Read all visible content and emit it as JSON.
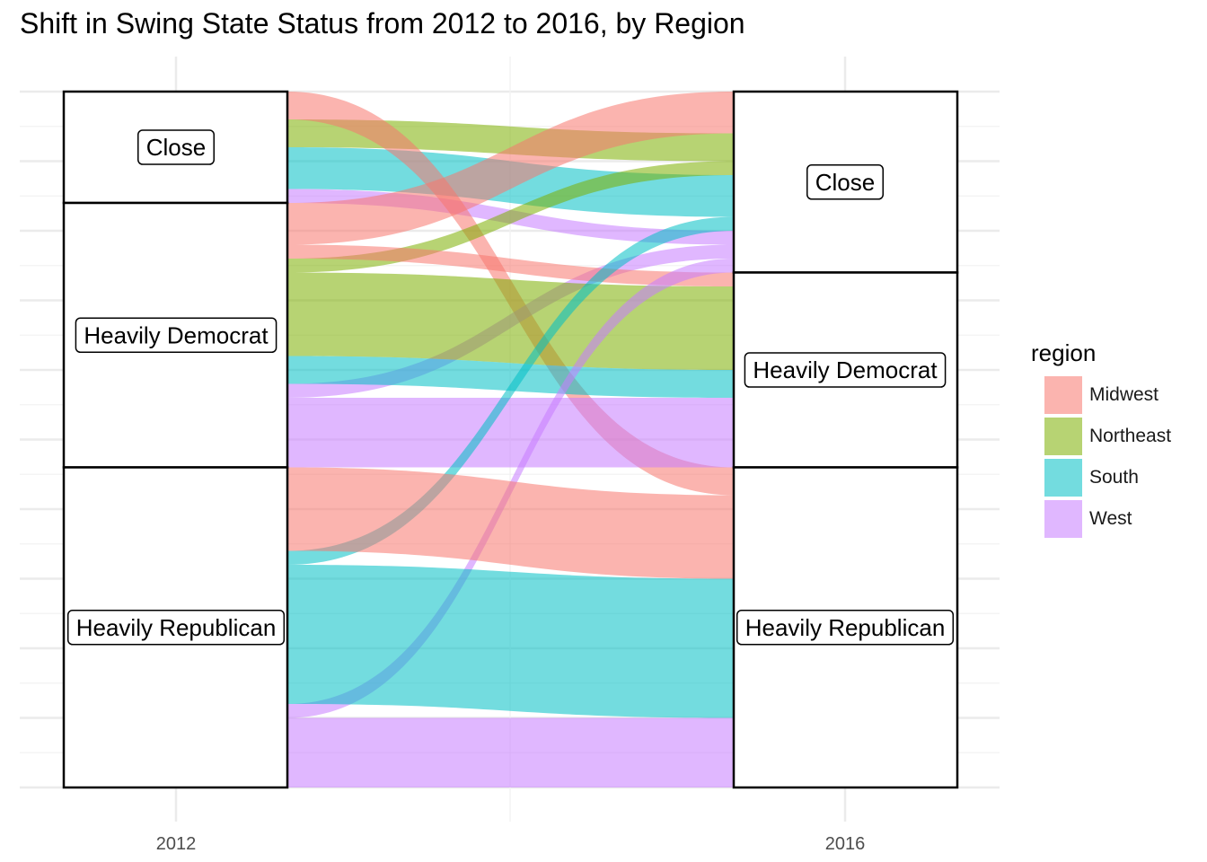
{
  "chart_data": {
    "type": "alluvial",
    "title": "Shift in Swing State Status from 2012 to 2016, by Region",
    "x_axis": [
      "2012",
      "2016"
    ],
    "y_total": 50,
    "strata": {
      "2012": [
        "Close",
        "Heavily Democrat",
        "Heavily Republican"
      ],
      "2016": [
        "Close",
        "Heavily Democrat",
        "Heavily Republican"
      ]
    },
    "flows": [
      {
        "from": "Close",
        "to": "Close",
        "region": "Northeast",
        "count": 2
      },
      {
        "from": "Close",
        "to": "Close",
        "region": "South",
        "count": 3
      },
      {
        "from": "Close",
        "to": "Close",
        "region": "West",
        "count": 1
      },
      {
        "from": "Close",
        "to": "Heavily Republican",
        "region": "Midwest",
        "count": 2
      },
      {
        "from": "Heavily Democrat",
        "to": "Close",
        "region": "Midwest",
        "count": 3
      },
      {
        "from": "Heavily Democrat",
        "to": "Close",
        "region": "Northeast",
        "count": 1
      },
      {
        "from": "Heavily Democrat",
        "to": "Close",
        "region": "West",
        "count": 1
      },
      {
        "from": "Heavily Democrat",
        "to": "Heavily Democrat",
        "region": "Midwest",
        "count": 1
      },
      {
        "from": "Heavily Democrat",
        "to": "Heavily Democrat",
        "region": "Northeast",
        "count": 6
      },
      {
        "from": "Heavily Democrat",
        "to": "Heavily Democrat",
        "region": "South",
        "count": 2
      },
      {
        "from": "Heavily Democrat",
        "to": "Heavily Democrat",
        "region": "West",
        "count": 5
      },
      {
        "from": "Heavily Republican",
        "to": "Close",
        "region": "South",
        "count": 1
      },
      {
        "from": "Heavily Republican",
        "to": "Close",
        "region": "West",
        "count": 1
      },
      {
        "from": "Heavily Republican",
        "to": "Heavily Republican",
        "region": "Midwest",
        "count": 6
      },
      {
        "from": "Heavily Republican",
        "to": "Heavily Republican",
        "region": "South",
        "count": 10
      },
      {
        "from": "Heavily Republican",
        "to": "Heavily Republican",
        "region": "West",
        "count": 5
      }
    ],
    "legend": {
      "title": "region",
      "placement": "right",
      "entries": [
        "Midwest",
        "Northeast",
        "South",
        "West"
      ]
    },
    "colors": {
      "Midwest": "#F8766D",
      "Northeast": "#7CAE00",
      "South": "#00BFC4",
      "West": "#C77CFF"
    },
    "grid": true
  }
}
